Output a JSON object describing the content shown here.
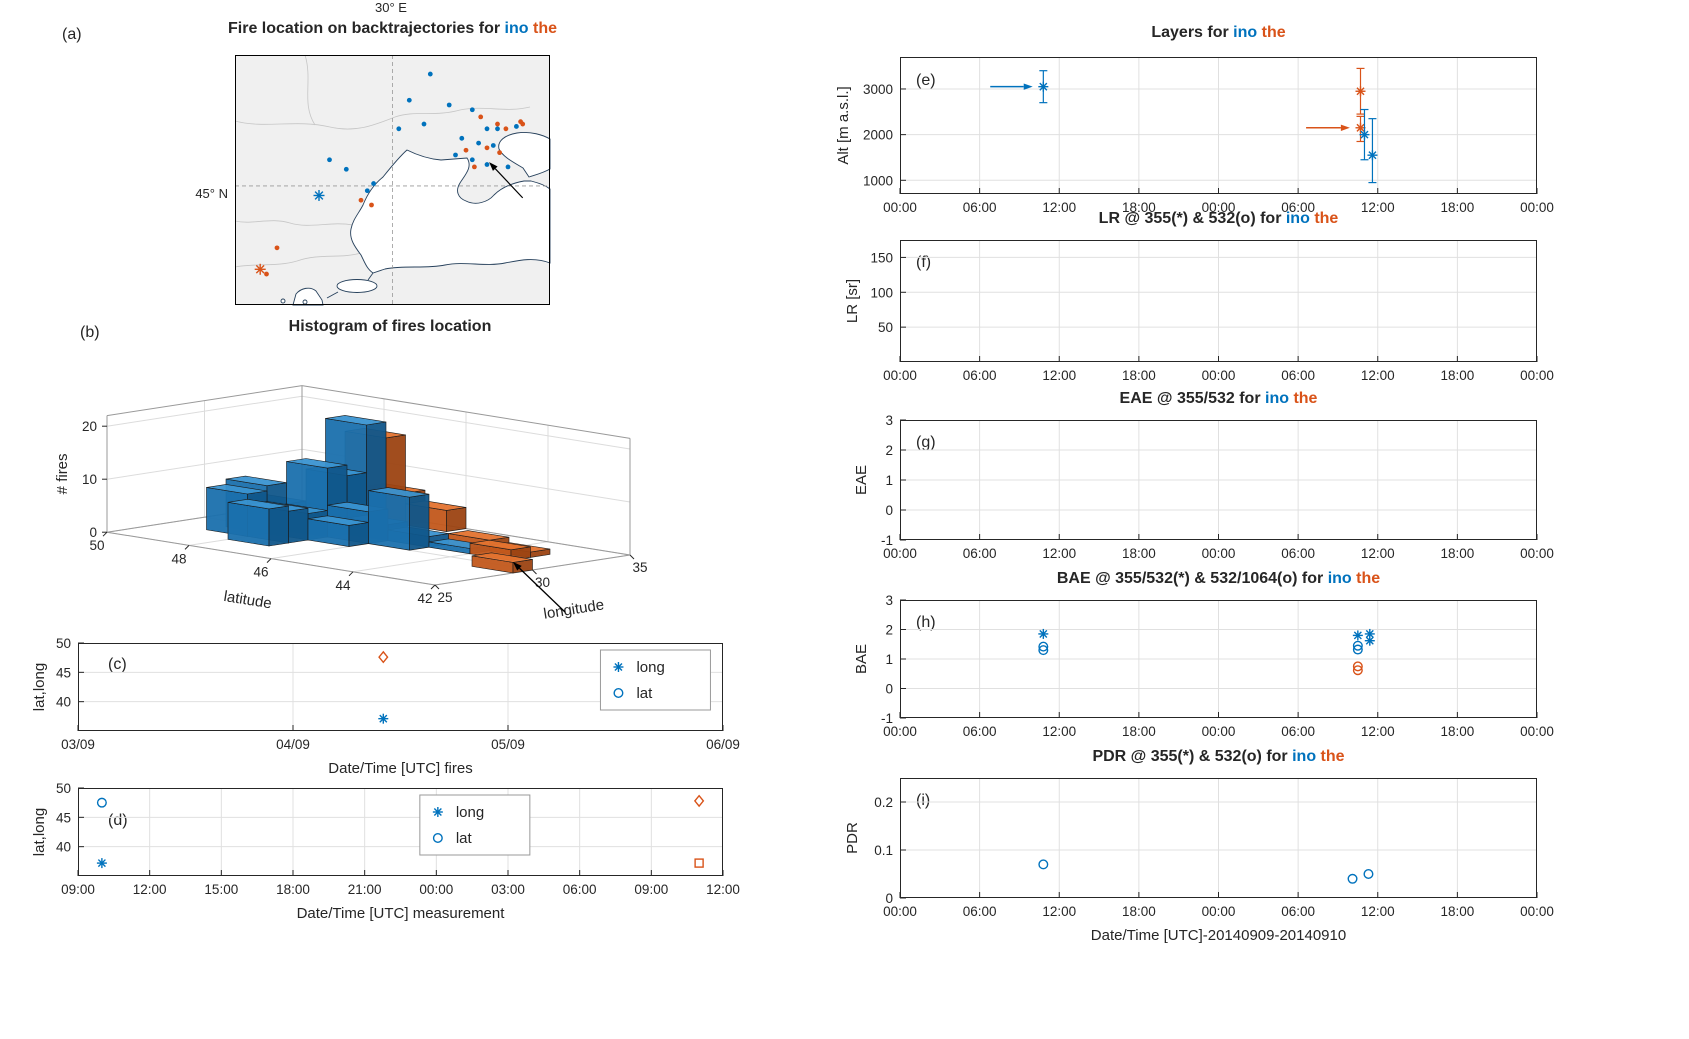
{
  "colors": {
    "blue": "#0072BD",
    "orange": "#D95319",
    "text": "#262626"
  },
  "words": {
    "blue": "ino",
    "orange": "the"
  },
  "panel_labels": {
    "a": "(a)",
    "b": "(b)",
    "c": "(c)",
    "d": "(d)",
    "e": "(e)",
    "f": "(f)",
    "g": "(g)",
    "h": "(h)",
    "i": "(i)"
  },
  "chart_data": [
    {
      "id": "a",
      "type": "map-scatter",
      "title_prefix": "Fire location on backtrajectories for ",
      "lon_gridline_label": "30° E",
      "lat_gridline_label": "45° N",
      "lon_range": [
        22.5,
        37.5
      ],
      "lat_range": [
        40,
        50.5
      ],
      "gridline_lon": 30,
      "gridline_lat": 45,
      "ino_fires_lonlat": [
        [
          31.8,
          49.7
        ],
        [
          30.8,
          48.6
        ],
        [
          32.7,
          48.4
        ],
        [
          31.5,
          47.6
        ],
        [
          30.3,
          47.4
        ],
        [
          33.8,
          48.2
        ],
        [
          34.5,
          47.4
        ],
        [
          33.3,
          47.0
        ],
        [
          34.1,
          46.8
        ],
        [
          34.8,
          46.7
        ],
        [
          35.0,
          47.4
        ],
        [
          33.0,
          46.3
        ],
        [
          33.8,
          46.1
        ],
        [
          34.5,
          45.9
        ],
        [
          35.5,
          45.8
        ],
        [
          35.9,
          47.5
        ],
        [
          27.0,
          46.1
        ],
        [
          27.8,
          45.7
        ],
        [
          28.8,
          44.8
        ],
        [
          29.1,
          45.1
        ]
      ],
      "the_fires_lonlat": [
        [
          34.2,
          47.9
        ],
        [
          35.0,
          47.6
        ],
        [
          35.4,
          47.4
        ],
        [
          34.5,
          46.6
        ],
        [
          35.1,
          46.4
        ],
        [
          36.1,
          47.7
        ],
        [
          36.2,
          47.6
        ],
        [
          33.5,
          46.5
        ],
        [
          33.9,
          45.8
        ],
        [
          28.5,
          44.4
        ],
        [
          29.0,
          44.2
        ],
        [
          24.5,
          42.4
        ],
        [
          24.0,
          41.3
        ]
      ],
      "ino_site_lonlat": [
        26.5,
        44.6
      ],
      "the_site_lonlat": [
        23.7,
        41.5
      ],
      "arrow_lonlat": {
        "from": [
          36.2,
          44.5
        ],
        "to": [
          34.6,
          46.0
        ]
      }
    },
    {
      "id": "b",
      "type": "bar3d",
      "title": "Histogram of fires location",
      "xlabel": "latitude",
      "ylabel": "longitude",
      "zlabel": "# fires",
      "lat_ticks": [
        50,
        48,
        46,
        44,
        42
      ],
      "lon_ticks": [
        25,
        30,
        35
      ],
      "z_ticks": [
        0,
        10,
        20
      ],
      "ino_bars_lat_lon_count": [
        [
          48,
          28,
          8
        ],
        [
          48,
          29,
          9
        ],
        [
          48,
          30,
          5
        ],
        [
          47,
          27,
          7
        ],
        [
          47,
          28,
          6
        ],
        [
          47,
          29,
          5
        ],
        [
          47,
          30,
          13
        ],
        [
          47,
          31,
          11
        ],
        [
          47,
          32,
          20
        ],
        [
          46,
          29,
          4
        ],
        [
          46,
          30,
          6
        ],
        [
          46,
          31,
          3
        ],
        [
          45,
          30,
          10
        ],
        [
          45,
          31,
          2
        ],
        [
          44,
          31,
          1
        ]
      ],
      "the_bars_lat_lon_count": [
        [
          47,
          33,
          17
        ],
        [
          47,
          34,
          6
        ],
        [
          46,
          34,
          4
        ],
        [
          44,
          32,
          2
        ],
        [
          43,
          31,
          2
        ],
        [
          43,
          32,
          1
        ],
        [
          42,
          29,
          2
        ]
      ]
    },
    {
      "id": "c",
      "type": "scatter",
      "ylabel": "lat,long",
      "xlabel": "Date/Time [UTC] fires",
      "x_range": [
        0,
        3
      ],
      "x_tick_labels": [
        "03/09",
        "04/09",
        "05/09",
        "06/09"
      ],
      "y_range": [
        35,
        50
      ],
      "y_ticks": [
        50,
        45,
        40
      ],
      "legend": {
        "x_frac": 0.81,
        "items": [
          {
            "marker": "asterisk",
            "color": "blue",
            "label": "long"
          },
          {
            "marker": "circle",
            "color": "blue",
            "label": "lat"
          }
        ]
      },
      "series": [
        {
          "group": "the",
          "marker": "diamond",
          "color": "orange",
          "points": [
            [
              1.42,
              47.6
            ]
          ]
        },
        {
          "group": "ino",
          "marker": "asterisk",
          "color": "blue",
          "points": [
            [
              1.42,
              37.1
            ]
          ]
        }
      ]
    },
    {
      "id": "d",
      "type": "scatter",
      "ylabel": "lat,long",
      "xlabel": "Date/Time [UTC] measurement",
      "x_range": [
        9,
        36
      ],
      "x_tick_labels": [
        "09:00",
        "12:00",
        "15:00",
        "18:00",
        "21:00",
        "00:00",
        "03:00",
        "06:00",
        "09:00",
        "12:00"
      ],
      "y_range": [
        35,
        50
      ],
      "y_ticks": [
        50,
        45,
        40
      ],
      "legend": {
        "x_frac": 0.53,
        "items": [
          {
            "marker": "asterisk",
            "color": "blue",
            "label": "long"
          },
          {
            "marker": "circle",
            "color": "blue",
            "label": "lat"
          }
        ]
      },
      "series": [
        {
          "group": "ino",
          "marker": "circle",
          "color": "blue",
          "points": [
            [
              10,
              47.5
            ]
          ]
        },
        {
          "group": "ino",
          "marker": "asterisk",
          "color": "blue",
          "points": [
            [
              10,
              37.2
            ]
          ]
        },
        {
          "group": "the",
          "marker": "diamond",
          "color": "orange",
          "points": [
            [
              35,
              47.8
            ]
          ]
        },
        {
          "group": "the",
          "marker": "square",
          "color": "orange",
          "points": [
            [
              35,
              37.2
            ]
          ]
        }
      ]
    },
    {
      "id": "e",
      "type": "scatter",
      "title_prefix": "Layers for ",
      "ylabel": "Alt [m a.s.l.]",
      "x_range": [
        0,
        48
      ],
      "x_tick_labels": [
        "00:00",
        "06:00",
        "12:00",
        "18:00",
        "00:00",
        "06:00",
        "12:00",
        "18:00",
        "00:00"
      ],
      "y_range": [
        700,
        3700
      ],
      "y_ticks": [
        3000,
        2000,
        1000
      ],
      "series": [
        {
          "group": "ino",
          "marker": "asterisk",
          "color": "blue",
          "points": [
            [
              10.8,
              3050
            ]
          ],
          "yerr": [
            [
              2700,
              3400
            ]
          ]
        },
        {
          "group": "the",
          "marker": "asterisk",
          "color": "orange",
          "points": [
            [
              34.7,
              2950
            ]
          ],
          "yerr": [
            [
              2450,
              3450
            ]
          ]
        },
        {
          "group": "the",
          "marker": "asterisk",
          "color": "orange",
          "points": [
            [
              34.7,
              2150
            ]
          ],
          "yerr": [
            [
              1850,
              2400
            ]
          ]
        },
        {
          "group": "ino",
          "marker": "asterisk",
          "color": "blue",
          "points": [
            [
              35.0,
              2000
            ]
          ],
          "yerr": [
            [
              1450,
              2550
            ]
          ]
        },
        {
          "group": "ino",
          "marker": "asterisk",
          "color": "blue",
          "points": [
            [
              35.6,
              1550
            ]
          ],
          "yerr": [
            [
              950,
              2350
            ]
          ]
        }
      ],
      "arrows": [
        {
          "color": "blue",
          "x1": 6.8,
          "x2": 10.0,
          "y": 3050
        },
        {
          "color": "orange",
          "x1": 30.6,
          "x2": 33.9,
          "y": 2150
        }
      ]
    },
    {
      "id": "f",
      "type": "scatter",
      "title_prefix": "LR @ 355(*) & 532(o) for ",
      "ylabel": "LR [sr]",
      "x_range": [
        0,
        48
      ],
      "x_tick_labels": [
        "00:00",
        "06:00",
        "12:00",
        "18:00",
        "00:00",
        "06:00",
        "12:00",
        "18:00",
        "00:00"
      ],
      "y_range": [
        0,
        175
      ],
      "y_ticks": [
        150,
        100,
        50
      ],
      "series": []
    },
    {
      "id": "g",
      "type": "scatter",
      "title_prefix": "EAE @ 355/532 for ",
      "ylabel": "EAE",
      "x_range": [
        0,
        48
      ],
      "x_tick_labels": [
        "00:00",
        "06:00",
        "12:00",
        "18:00",
        "00:00",
        "06:00",
        "12:00",
        "18:00",
        "00:00"
      ],
      "y_range": [
        -1,
        3
      ],
      "y_ticks": [
        3,
        2,
        1,
        0,
        -1
      ],
      "series": []
    },
    {
      "id": "h",
      "type": "scatter",
      "title_prefix": "BAE @ 355/532(*) & 532/1064(o) for ",
      "ylabel": "BAE",
      "x_range": [
        0,
        48
      ],
      "x_tick_labels": [
        "00:00",
        "06:00",
        "12:00",
        "18:00",
        "00:00",
        "06:00",
        "12:00",
        "18:00",
        "00:00"
      ],
      "y_range": [
        -1,
        3
      ],
      "y_ticks": [
        3,
        2,
        1,
        0,
        -1
      ],
      "series": [
        {
          "group": "ino",
          "marker": "asterisk",
          "color": "blue",
          "points": [
            [
              10.8,
              1.85
            ],
            [
              34.5,
              1.8
            ],
            [
              35.4,
              1.85
            ],
            [
              35.4,
              1.62
            ]
          ]
        },
        {
          "group": "ino",
          "marker": "circle",
          "color": "blue",
          "points": [
            [
              10.8,
              1.42
            ],
            [
              10.8,
              1.3
            ],
            [
              34.5,
              1.45
            ],
            [
              34.5,
              1.32
            ]
          ]
        },
        {
          "group": "the",
          "marker": "circle",
          "color": "orange",
          "points": [
            [
              34.5,
              0.75
            ],
            [
              34.5,
              0.62
            ]
          ]
        }
      ]
    },
    {
      "id": "i",
      "type": "scatter",
      "title_prefix": "PDR @ 355(*) & 532(o) for ",
      "ylabel": "PDR",
      "xlabel": "Date/Time [UTC]-20140909-20140910",
      "x_range": [
        0,
        48
      ],
      "x_tick_labels": [
        "00:00",
        "06:00",
        "12:00",
        "18:00",
        "00:00",
        "06:00",
        "12:00",
        "18:00",
        "00:00"
      ],
      "y_range": [
        0,
        0.25
      ],
      "y_ticks": [
        0.2,
        0.1,
        0
      ],
      "series": [
        {
          "group": "ino",
          "marker": "circle",
          "color": "blue",
          "points": [
            [
              10.8,
              0.07
            ],
            [
              34.1,
              0.04
            ],
            [
              35.3,
              0.05
            ]
          ]
        }
      ]
    }
  ]
}
